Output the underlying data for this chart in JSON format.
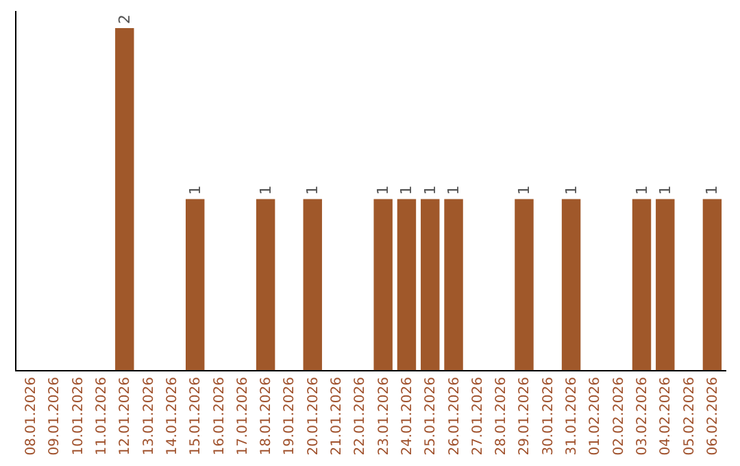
{
  "chart_data": {
    "type": "bar",
    "categories": [
      "08.01.2026",
      "09.01.2026",
      "10.01.2026",
      "11.01.2026",
      "12.01.2026",
      "13.01.2026",
      "14.01.2026",
      "15.01.2026",
      "16.01.2026",
      "17.01.2026",
      "18.01.2026",
      "19.01.2026",
      "20.01.2026",
      "21.01.2026",
      "22.01.2026",
      "23.01.2026",
      "24.01.2026",
      "25.01.2026",
      "26.01.2026",
      "27.01.2026",
      "28.01.2026",
      "29.01.2026",
      "30.01.2026",
      "31.01.2026",
      "01.02.2026",
      "02.02.2026",
      "03.02.2026",
      "04.02.2026",
      "05.02.2026",
      "06.02.2026"
    ],
    "values": [
      0,
      0,
      0,
      0,
      2,
      0,
      0,
      1,
      0,
      0,
      1,
      0,
      1,
      0,
      0,
      1,
      1,
      1,
      1,
      0,
      0,
      1,
      0,
      1,
      0,
      0,
      1,
      1,
      0,
      1
    ],
    "value_labels": [
      null,
      null,
      null,
      null,
      "2",
      null,
      null,
      "1",
      null,
      null,
      "1",
      null,
      "1",
      null,
      null,
      "1",
      "1",
      "1",
      "1",
      null,
      null,
      "1",
      null,
      "1",
      null,
      null,
      "1",
      "1",
      null,
      "1"
    ],
    "color": "#a0582a",
    "tick_labels": "x"
  }
}
